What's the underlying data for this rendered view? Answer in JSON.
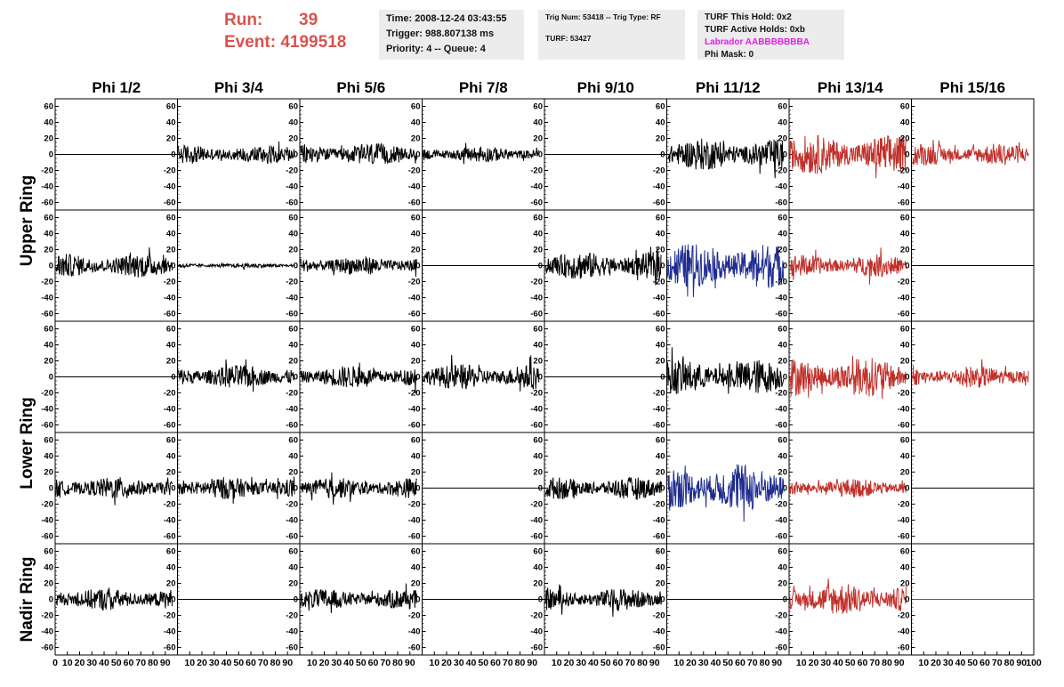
{
  "header": {
    "run_label": "Run:",
    "run_value": "39",
    "event_label": "Event:",
    "event_value": "4199518",
    "time_line": "Time: 2008-12-24 03:43:55",
    "trigger_line": "Trigger: 988.807138 ms",
    "priority_line": "Priority: 4 -- Queue: 4",
    "trig_line": "Trig Num: 53418 -- Trig Type: RF",
    "turf_line": "TURF: 53427",
    "turf_hold_line": "TURF This Hold: 0x2",
    "turf_active_line": "TURF Active Holds: 0xb",
    "labrador_line": "Labrador AABBBBBBBA",
    "phi_mask_line": "Phi Mask: 0"
  },
  "colors": {
    "black": "#000000",
    "red": "#c0302a",
    "blue": "#1f2c8f",
    "run_text": "#d9534f",
    "info_bg": "#ececec",
    "labrador": "#e020e0"
  },
  "columns": [
    "Phi 1/2",
    "Phi 3/4",
    "Phi 5/6",
    "Phi 7/8",
    "Phi 9/10",
    "Phi 11/12",
    "Phi 13/14",
    "Phi 15/16"
  ],
  "ring_labels": [
    "Upper Ring",
    "Lower Ring",
    "Nadir Ring"
  ],
  "y_tick_labels": [
    "60",
    "40",
    "20",
    "0",
    "-20",
    "-40",
    "-60"
  ],
  "x_tick_labels": [
    "0",
    "10",
    "20",
    "30",
    "40",
    "50",
    "60",
    "70",
    "80",
    "90",
    "100"
  ],
  "chart_data": {
    "type": "line",
    "description_units": "waveform amplitude vs time",
    "xlim": [
      0,
      100
    ],
    "ylim": [
      -65,
      65
    ],
    "panels": [
      [
        "flat",
        "noise",
        "noise",
        "noise",
        "flat",
        "noise",
        "noise",
        "noise"
      ],
      [
        "noise",
        "noise",
        "noise",
        "flat",
        "noise",
        "noise",
        "noise",
        "flat"
      ],
      [
        "flat",
        "noise",
        "noise",
        "noise",
        "flat",
        "noise",
        "noise",
        "noise"
      ],
      [
        "noise",
        "noise",
        "noise",
        "flat",
        "noise",
        "noise",
        "noise",
        "flat"
      ],
      [
        "noise",
        "flat",
        "noise",
        "flat",
        "noise",
        "flat",
        "noise",
        "flat"
      ]
    ],
    "panel_colors": [
      [
        "black",
        "black",
        "black",
        "black",
        "black",
        "black",
        "red",
        "red"
      ],
      [
        "black",
        "black",
        "black",
        "black",
        "black",
        "blue",
        "red",
        "black"
      ],
      [
        "black",
        "black",
        "black",
        "black",
        "black",
        "black",
        "red",
        "red"
      ],
      [
        "black",
        "black",
        "black",
        "black",
        "black",
        "blue",
        "red",
        "black"
      ],
      [
        "black",
        "black",
        "black",
        "black",
        "black",
        "black",
        "red",
        "red"
      ]
    ],
    "panel_amplitudes": [
      [
        0,
        12,
        14,
        10,
        0,
        20,
        25,
        14
      ],
      [
        15,
        3,
        12,
        0,
        18,
        28,
        14,
        0
      ],
      [
        0,
        15,
        14,
        16,
        0,
        22,
        25,
        14
      ],
      [
        14,
        14,
        13,
        0,
        14,
        30,
        12,
        0
      ],
      [
        14,
        0,
        13,
        0,
        14,
        0,
        20,
        0
      ]
    ]
  }
}
